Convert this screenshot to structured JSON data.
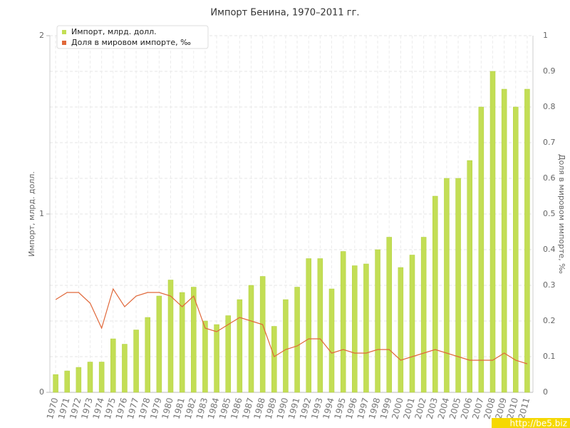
{
  "chart_data": {
    "type": "bar",
    "title": "Импорт Бенина, 1970–2011 гг.",
    "y_label": "Импорт, млрд. долл.",
    "y2_label": "Доля в мировом импорте, ‰",
    "categories": [
      "1970",
      "1971",
      "1972",
      "1973",
      "1974",
      "1975",
      "1976",
      "1977",
      "1978",
      "1979",
      "1980",
      "1981",
      "1982",
      "1983",
      "1984",
      "1985",
      "1986",
      "1987",
      "1988",
      "1989",
      "1990",
      "1991",
      "1992",
      "1993",
      "1994",
      "1995",
      "1996",
      "1997",
      "1998",
      "1999",
      "2000",
      "2001",
      "2002",
      "2003",
      "2004",
      "2005",
      "2006",
      "2007",
      "2008",
      "2009",
      "2010",
      "2011"
    ],
    "series": [
      {
        "name": "Импорт, млрд. долл.",
        "type": "bar",
        "color": "#c3de55",
        "values": [
          0.1,
          0.12,
          0.14,
          0.17,
          0.17,
          0.3,
          0.27,
          0.35,
          0.42,
          0.54,
          0.63,
          0.56,
          0.59,
          0.4,
          0.38,
          0.43,
          0.52,
          0.6,
          0.65,
          0.37,
          0.52,
          0.59,
          0.75,
          0.75,
          0.58,
          0.79,
          0.71,
          0.72,
          0.8,
          0.87,
          0.7,
          0.77,
          0.87,
          1.1,
          1.2,
          1.2,
          1.3,
          1.6,
          1.8,
          1.7,
          1.6,
          1.7
        ]
      },
      {
        "name": "Доля в мировом импорте, ‰",
        "type": "line",
        "axis": "y2",
        "color": "#e0683a",
        "values": [
          0.26,
          0.28,
          0.28,
          0.25,
          0.18,
          0.29,
          0.24,
          0.27,
          0.28,
          0.28,
          0.27,
          0.24,
          0.27,
          0.18,
          0.17,
          0.19,
          0.21,
          0.2,
          0.19,
          0.1,
          0.12,
          0.13,
          0.15,
          0.15,
          0.11,
          0.12,
          0.11,
          0.11,
          0.12,
          0.12,
          0.09,
          0.1,
          0.11,
          0.12,
          0.11,
          0.1,
          0.09,
          0.09,
          0.09,
          0.11,
          0.09,
          0.08
        ]
      }
    ],
    "ylim": [
      0,
      2
    ],
    "yticks": [
      0,
      1,
      2
    ],
    "y2lim": [
      0,
      1
    ],
    "y2ticks": [
      0,
      0.1,
      0.2,
      0.3,
      0.4,
      0.5,
      0.6,
      0.7,
      0.8,
      0.9,
      1
    ],
    "grid": true,
    "legend": "upper left",
    "watermark": "http://be5.biz"
  }
}
